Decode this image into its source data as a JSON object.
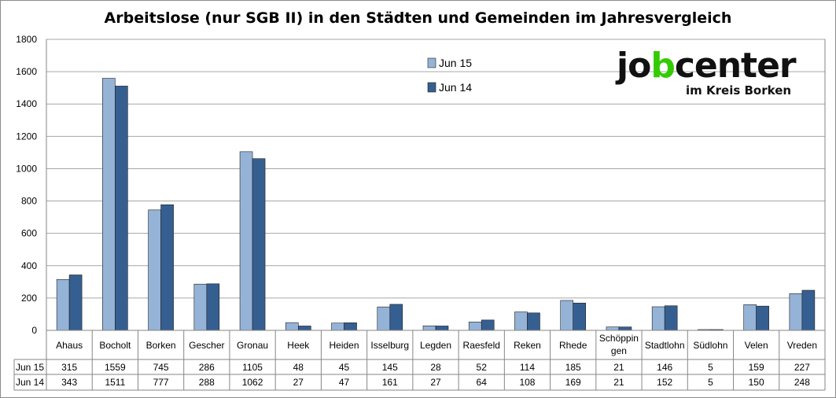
{
  "chart_data": {
    "type": "bar",
    "title": "Arbeitslose (nur SGB II) in den Städten und Gemeinden im Jahresvergleich",
    "categories": [
      "Ahaus",
      "Bocholt",
      "Borken",
      "Gescher",
      "Gronau",
      "Heek",
      "Heiden",
      "Isselburg",
      "Legden",
      "Raesfeld",
      "Reken",
      "Rhede",
      "Schöppingen",
      "Stadtlohn",
      "Südlohn",
      "Velen",
      "Vreden"
    ],
    "category_lines": [
      [
        "Ahaus"
      ],
      [
        "Bocholt"
      ],
      [
        "Borken"
      ],
      [
        "Gescher"
      ],
      [
        "Gronau"
      ],
      [
        "Heek"
      ],
      [
        "Heiden"
      ],
      [
        "Isselburg"
      ],
      [
        "Legden"
      ],
      [
        "Raesfeld"
      ],
      [
        "Reken"
      ],
      [
        "Rhede"
      ],
      [
        "Schöppin",
        "gen"
      ],
      [
        "Stadtlohn"
      ],
      [
        "Südlohn"
      ],
      [
        "Velen"
      ],
      [
        "Vreden"
      ]
    ],
    "series": [
      {
        "name": "Jun 15",
        "values": [
          315,
          1559,
          745,
          286,
          1105,
          48,
          45,
          145,
          28,
          52,
          114,
          185,
          21,
          146,
          5,
          159,
          227
        ]
      },
      {
        "name": "Jun 14",
        "values": [
          343,
          1511,
          777,
          288,
          1062,
          27,
          47,
          161,
          27,
          64,
          108,
          169,
          21,
          152,
          5,
          150,
          248
        ]
      }
    ],
    "ylim": [
      0,
      1800
    ],
    "yticks": [
      0,
      200,
      400,
      600,
      800,
      1000,
      1200,
      1400,
      1600,
      1800
    ],
    "grid": true,
    "legend_position": "top-center",
    "data_table": true,
    "colors": {
      "Jun 15": "#95b3d7",
      "Jun 14": "#365f91",
      "grid": "#a6a6a6",
      "axis": "#868686"
    }
  },
  "logo": {
    "main": "jobcenter",
    "sub": "im Kreis Borken",
    "accent": "#33cc00"
  }
}
